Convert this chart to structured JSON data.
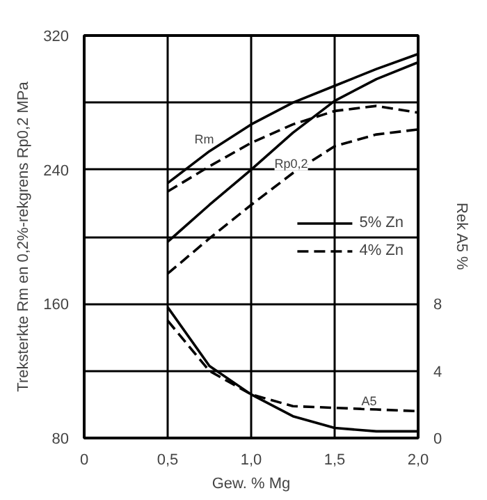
{
  "chart_data": {
    "type": "line",
    "xlabel": "Gew. % Mg",
    "ylabel": "Treksterkte Rm en 0,2%-rekgrens Rp0,2 MPa",
    "y2label": "Rek A5 %",
    "xlim": [
      0,
      2.0
    ],
    "xticks": [
      0,
      {
        "value": 0.5,
        "label": "0,5"
      },
      {
        "value": 1.0,
        "label": "1,0"
      },
      {
        "value": 1.5,
        "label": "1,5"
      },
      {
        "value": 2.0,
        "label": "2,0"
      }
    ],
    "ylim": [
      80,
      320
    ],
    "yticks": [
      80,
      {
        "value": 120,
        "label": null
      },
      160,
      {
        "value": 200,
        "label": null
      },
      240,
      {
        "value": 280,
        "label": null
      },
      320
    ],
    "y2lim": [
      0,
      24
    ],
    "y2ticks": [
      0,
      4,
      8
    ],
    "grid": true,
    "legend": "right",
    "marker": "none",
    "x": [
      0.5,
      0.75,
      1.0,
      1.25,
      1.5,
      1.75,
      2.0
    ],
    "series": [
      {
        "name": "5% Zn",
        "color": "#000000",
        "line_style": "solid",
        "values": [
          232,
          251,
          267,
          280,
          290,
          300,
          309
        ]
      },
      {
        "name": "4% Zn",
        "color": "#000000",
        "line_style": "dashed",
        "values": [
          227,
          242,
          256,
          267,
          275,
          278,
          274
        ]
      },
      {
        "color": "#000000",
        "line_style": "solid",
        "values": [
          197,
          219,
          240,
          262,
          281,
          294,
          304
        ]
      },
      {
        "color": "#000000",
        "line_style": "dashed",
        "values": [
          178,
          199,
          219,
          238,
          254,
          261,
          264
        ]
      },
      {
        "color": "#000000",
        "line_style": "solid",
        "axis": "y2",
        "values": [
          7.8,
          4.3,
          2.6,
          1.3,
          0.6,
          0.4,
          0.4
        ]
      },
      {
        "color": "#000000",
        "line_style": "dashed",
        "axis": "y2",
        "values": [
          7.0,
          4.0,
          2.6,
          1.9,
          1.8,
          1.7,
          1.6
        ]
      }
    ],
    "annotations": [
      "Rm",
      "Rp0,2",
      "A5"
    ]
  }
}
